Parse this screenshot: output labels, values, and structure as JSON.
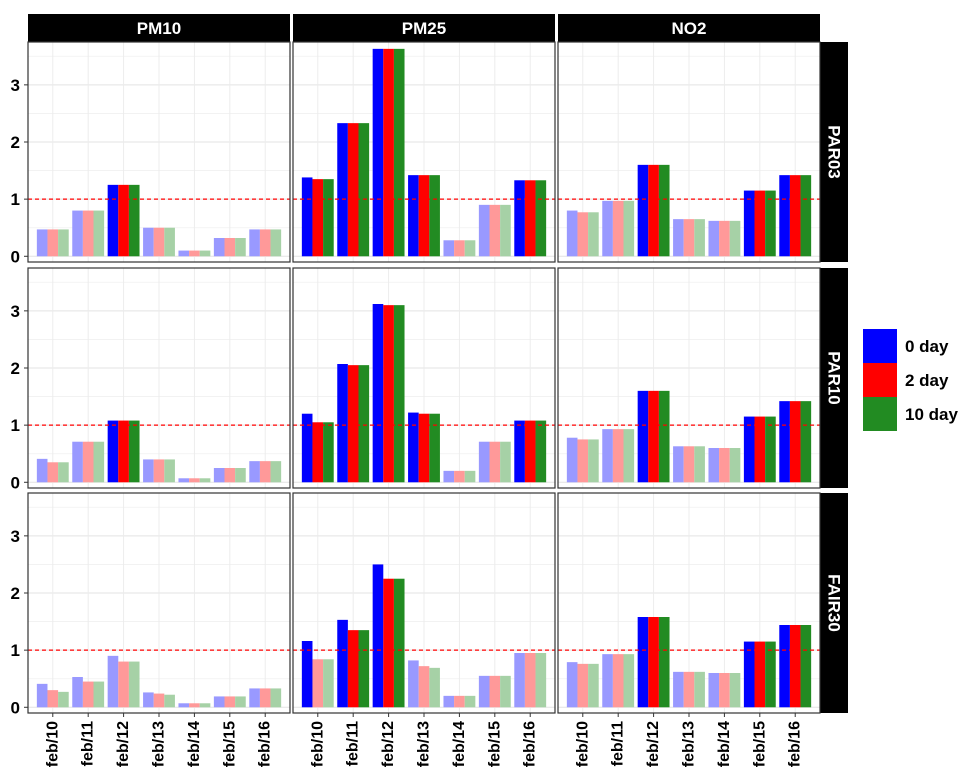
{
  "chart_data": {
    "type": "bar",
    "facet_columns": [
      "PM10",
      "PM25",
      "NO2"
    ],
    "facet_rows": [
      "PAR03",
      "PAR10",
      "FAIR30"
    ],
    "categories": [
      "feb/10",
      "feb/11",
      "feb/12",
      "feb/13",
      "feb/14",
      "feb/15",
      "feb/16"
    ],
    "series": [
      {
        "name": "0 day",
        "color": "#0000ff",
        "light_color": "#9999ff"
      },
      {
        "name": "2 day",
        "color": "#ff0000",
        "light_color": "#ff9999"
      },
      {
        "name": "10 day",
        "color": "#228b22",
        "light_color": "#a6d1a6"
      }
    ],
    "ylim": [
      -0.1,
      3.75
    ],
    "yticks": [
      "0",
      "1",
      "2",
      "3"
    ],
    "ytick_values": [
      0,
      1,
      2,
      3
    ],
    "reference_line": {
      "y": 1,
      "color": "#ff0000",
      "style": "dashed"
    },
    "shading_rule": "bars at or below the reference line are drawn in lighter color",
    "legend_position": "right",
    "grid": true,
    "panels": [
      {
        "row": "PAR03",
        "col": "PM10",
        "values": [
          [
            0.47,
            0.47,
            0.47
          ],
          [
            0.8,
            0.8,
            0.8
          ],
          [
            1.25,
            1.25,
            1.25
          ],
          [
            0.5,
            0.5,
            0.5
          ],
          [
            0.1,
            0.1,
            0.1
          ],
          [
            0.32,
            0.32,
            0.32
          ],
          [
            0.47,
            0.47,
            0.47
          ]
        ]
      },
      {
        "row": "PAR03",
        "col": "PM25",
        "values": [
          [
            1.38,
            1.35,
            1.35
          ],
          [
            2.33,
            2.33,
            2.33
          ],
          [
            3.63,
            3.63,
            3.63
          ],
          [
            1.42,
            1.42,
            1.42
          ],
          [
            0.28,
            0.28,
            0.28
          ],
          [
            0.9,
            0.9,
            0.9
          ],
          [
            1.33,
            1.33,
            1.33
          ]
        ]
      },
      {
        "row": "PAR03",
        "col": "NO2",
        "values": [
          [
            0.8,
            0.77,
            0.77
          ],
          [
            0.97,
            0.97,
            0.97
          ],
          [
            1.6,
            1.6,
            1.6
          ],
          [
            0.65,
            0.65,
            0.65
          ],
          [
            0.62,
            0.62,
            0.62
          ],
          [
            1.15,
            1.15,
            1.15
          ],
          [
            1.42,
            1.42,
            1.42
          ]
        ]
      },
      {
        "row": "PAR10",
        "col": "PM10",
        "values": [
          [
            0.41,
            0.35,
            0.35
          ],
          [
            0.71,
            0.71,
            0.71
          ],
          [
            1.08,
            1.08,
            1.08
          ],
          [
            0.4,
            0.4,
            0.4
          ],
          [
            0.07,
            0.07,
            0.07
          ],
          [
            0.25,
            0.25,
            0.25
          ],
          [
            0.37,
            0.37,
            0.37
          ]
        ]
      },
      {
        "row": "PAR10",
        "col": "PM25",
        "values": [
          [
            1.2,
            1.05,
            1.05
          ],
          [
            2.07,
            2.05,
            2.05
          ],
          [
            3.12,
            3.1,
            3.1
          ],
          [
            1.22,
            1.2,
            1.2
          ],
          [
            0.2,
            0.2,
            0.2
          ],
          [
            0.71,
            0.71,
            0.71
          ],
          [
            1.08,
            1.08,
            1.08
          ]
        ]
      },
      {
        "row": "PAR10",
        "col": "NO2",
        "values": [
          [
            0.78,
            0.75,
            0.75
          ],
          [
            0.93,
            0.93,
            0.93
          ],
          [
            1.6,
            1.6,
            1.6
          ],
          [
            0.63,
            0.63,
            0.63
          ],
          [
            0.6,
            0.6,
            0.6
          ],
          [
            1.15,
            1.15,
            1.15
          ],
          [
            1.42,
            1.42,
            1.42
          ]
        ]
      },
      {
        "row": "FAIR30",
        "col": "PM10",
        "values": [
          [
            0.41,
            0.3,
            0.27
          ],
          [
            0.53,
            0.45,
            0.45
          ],
          [
            0.9,
            0.8,
            0.8
          ],
          [
            0.26,
            0.24,
            0.22
          ],
          [
            0.07,
            0.07,
            0.07
          ],
          [
            0.19,
            0.19,
            0.19
          ],
          [
            0.33,
            0.33,
            0.33
          ]
        ]
      },
      {
        "row": "FAIR30",
        "col": "PM25",
        "values": [
          [
            1.16,
            0.84,
            0.84
          ],
          [
            1.53,
            1.35,
            1.35
          ],
          [
            2.5,
            2.25,
            2.25
          ],
          [
            0.82,
            0.72,
            0.69
          ],
          [
            0.2,
            0.2,
            0.2
          ],
          [
            0.55,
            0.55,
            0.55
          ],
          [
            0.95,
            0.95,
            0.95
          ]
        ]
      },
      {
        "row": "FAIR30",
        "col": "NO2",
        "values": [
          [
            0.79,
            0.76,
            0.76
          ],
          [
            0.93,
            0.93,
            0.93
          ],
          [
            1.58,
            1.58,
            1.58
          ],
          [
            0.62,
            0.62,
            0.62
          ],
          [
            0.6,
            0.6,
            0.6
          ],
          [
            1.15,
            1.15,
            1.15
          ],
          [
            1.44,
            1.44,
            1.44
          ]
        ]
      }
    ]
  }
}
